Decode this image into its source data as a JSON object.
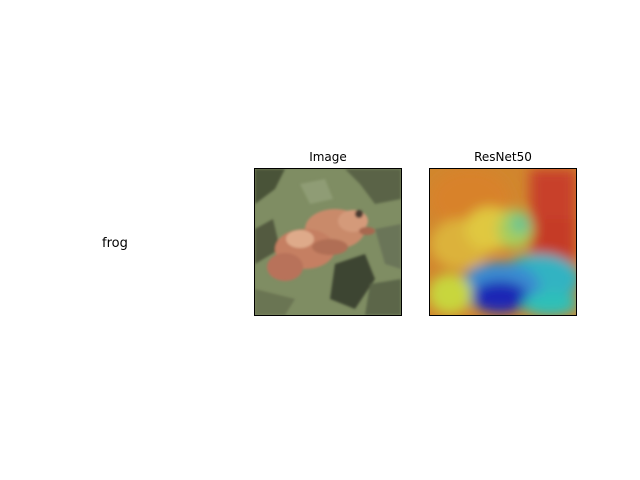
{
  "sample": {
    "class_label": "frog"
  },
  "panels": [
    {
      "title": "Image"
    },
    {
      "title": "ResNet50"
    }
  ]
}
